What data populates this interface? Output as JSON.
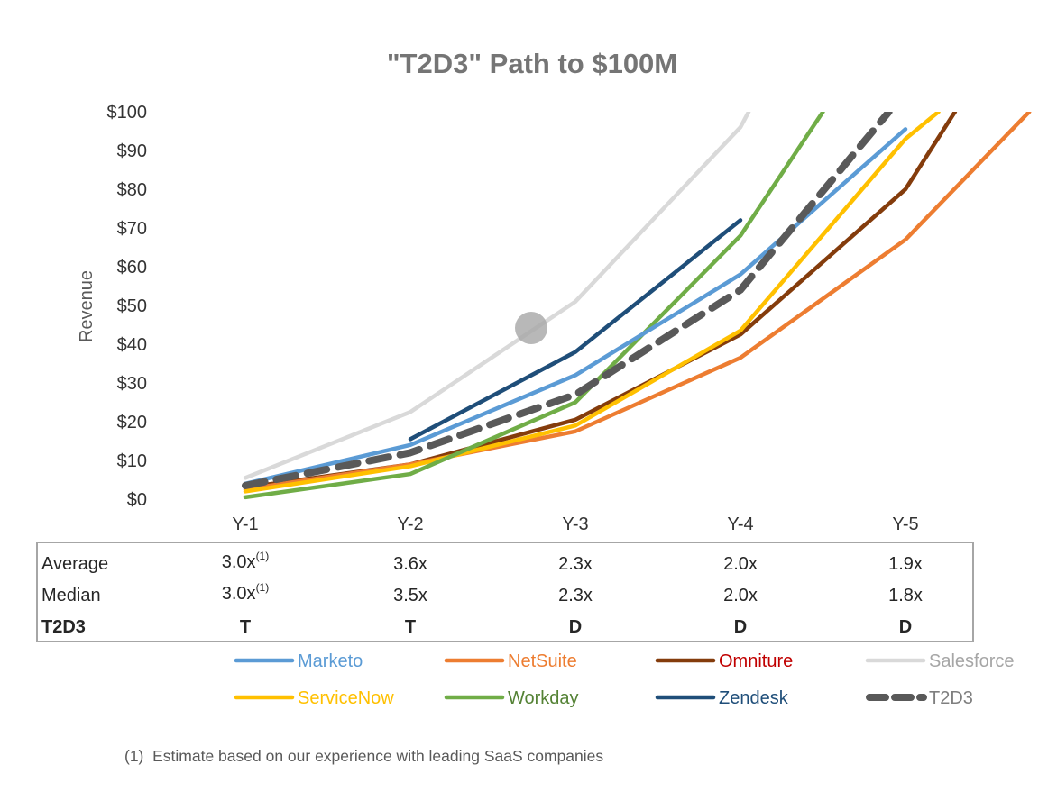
{
  "chart_data": {
    "type": "line",
    "title": "\"T2D3\" Path to $100M",
    "ylabel": "Revenue",
    "xlabel": "",
    "categories": [
      "Y-1",
      "Y-2",
      "Y-3",
      "Y-4",
      "Y-5"
    ],
    "ylim": [
      0,
      100
    ],
    "yticks": [
      "$0",
      "$10",
      "$20",
      "$30",
      "$40",
      "$50",
      "$60",
      "$70",
      "$80",
      "$90",
      "$100"
    ],
    "grid": false,
    "series": [
      {
        "name": "Salesforce",
        "color": "#d9d9d9",
        "style": "solid",
        "x": [
          0,
          1,
          2,
          3,
          3.05
        ],
        "values": [
          5.5,
          22.5,
          51,
          96,
          100
        ]
      },
      {
        "name": "Omniture",
        "color": "#843c0c",
        "style": "solid",
        "x": [
          0,
          1,
          2,
          3,
          4,
          4.3
        ],
        "values": [
          3,
          9,
          20.5,
          42.5,
          80,
          100
        ]
      },
      {
        "name": "NetSuite",
        "color": "#ed7d31",
        "style": "solid",
        "x": [
          0,
          1,
          2,
          3,
          4,
          4.75
        ],
        "values": [
          2.5,
          9,
          17.5,
          36.5,
          67,
          100
        ]
      },
      {
        "name": "ServiceNow",
        "color": "#ffc000",
        "style": "solid",
        "x": [
          0,
          1,
          2,
          3,
          4,
          4.2
        ],
        "values": [
          2,
          8.5,
          19,
          43.5,
          93,
          100
        ]
      },
      {
        "name": "Workday",
        "color": "#70ad47",
        "style": "solid",
        "x": [
          0,
          1,
          2,
          3,
          3.5
        ],
        "values": [
          0.5,
          6.5,
          25,
          68,
          100
        ]
      },
      {
        "name": "Marketo",
        "color": "#5b9bd5",
        "style": "solid",
        "x": [
          0,
          1,
          2,
          3,
          4
        ],
        "values": [
          4,
          14,
          32,
          58,
          95.5
        ]
      },
      {
        "name": "Zendesk",
        "color": "#1f4e79",
        "style": "solid",
        "x": [
          1,
          2,
          3
        ],
        "values": [
          15.5,
          38,
          72
        ]
      },
      {
        "name": "T2D3",
        "color": "#595959",
        "style": "dashed",
        "x": [
          0,
          1,
          2,
          3,
          3.9
        ],
        "values": [
          3.5,
          12,
          27,
          54,
          100
        ]
      }
    ],
    "table": {
      "rows": [
        {
          "label": "Average",
          "values": [
            "3.0x",
            "3.6x",
            "2.3x",
            "2.0x",
            "1.9x"
          ],
          "footnote_marks": [
            "(1)",
            "",
            "",
            "",
            ""
          ],
          "bold": false
        },
        {
          "label": "Median",
          "values": [
            "3.0x",
            "3.5x",
            "2.3x",
            "2.0x",
            "1.8x"
          ],
          "footnote_marks": [
            "(1)",
            "",
            "",
            "",
            ""
          ],
          "bold": false
        },
        {
          "label": "T2D3",
          "values": [
            "T",
            "T",
            "D",
            "D",
            "D"
          ],
          "footnote_marks": [
            "",
            "",
            "",
            "",
            ""
          ],
          "bold": true
        }
      ]
    },
    "legend": {
      "placement": "bottom",
      "entries": [
        {
          "name": "Marketo",
          "color": "#5b9bd5",
          "text_color": "#5b9bd5",
          "style": "solid"
        },
        {
          "name": "NetSuite",
          "color": "#ed7d31",
          "text_color": "#ed7d31",
          "style": "solid"
        },
        {
          "name": "Omniture",
          "color": "#843c0c",
          "text_color": "#c00000",
          "style": "solid"
        },
        {
          "name": "Salesforce",
          "color": "#d9d9d9",
          "text_color": "#a6a6a6",
          "style": "solid"
        },
        {
          "name": "ServiceNow",
          "color": "#ffc000",
          "text_color": "#ffc000",
          "style": "solid"
        },
        {
          "name": "Workday",
          "color": "#70ad47",
          "text_color": "#548235",
          "style": "solid"
        },
        {
          "name": "Zendesk",
          "color": "#1f4e79",
          "text_color": "#1f4e79",
          "style": "solid"
        },
        {
          "name": "T2D3",
          "color": "#595959",
          "text_color": "#7f7f7f",
          "style": "dashed"
        }
      ]
    },
    "footnote": "(1)  Estimate based on our experience with leading SaaS companies"
  }
}
